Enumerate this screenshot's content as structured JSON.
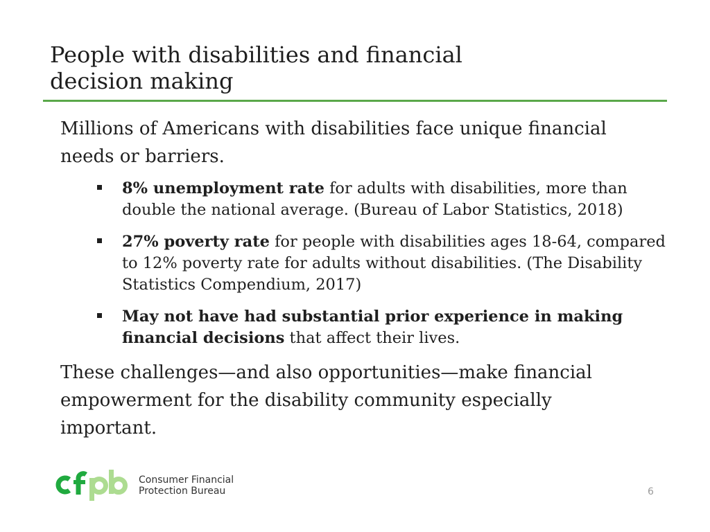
{
  "slide": {
    "title": "People with disabilities and financial decision making",
    "intro": "Millions of Americans with disabilities face unique financial needs or barriers.",
    "bullets": [
      {
        "bold": "8% unemployment rate",
        "text": " for adults with disabilities, more than double the national average. (Bureau of Labor Statistics, 2018)"
      },
      {
        "bold": "27% poverty rate",
        "text": " for people with disabilities ages 18-64, compared to 12% poverty rate for adults without disabilities. (The Disability Statistics Compendium, 2017)"
      },
      {
        "bold": "May not have had substantial prior experience in making financial decisions",
        "text": " that affect their lives."
      }
    ],
    "outro": "These challenges—and also opportunities—make financial empowerment for the disability community especially important.",
    "page_number": "6"
  },
  "footer": {
    "logo_mark": "cfpb",
    "org_line1": "Consumer Financial",
    "org_line2": "Protection Bureau"
  },
  "colors": {
    "accent_green": "#5aa84a",
    "logo_dark_green": "#20aa3f",
    "logo_light_green": "#addc91"
  }
}
